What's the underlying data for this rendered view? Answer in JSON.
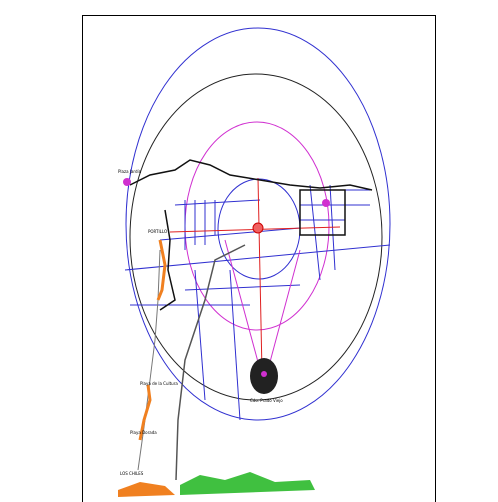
{
  "map": {
    "labels": [
      "Plaza Jardín",
      "PORTILLO",
      "Cdo. Prado Viejo",
      "Playa de la Cultura",
      "Playa Dorada",
      "LOS CHILES"
    ]
  }
}
